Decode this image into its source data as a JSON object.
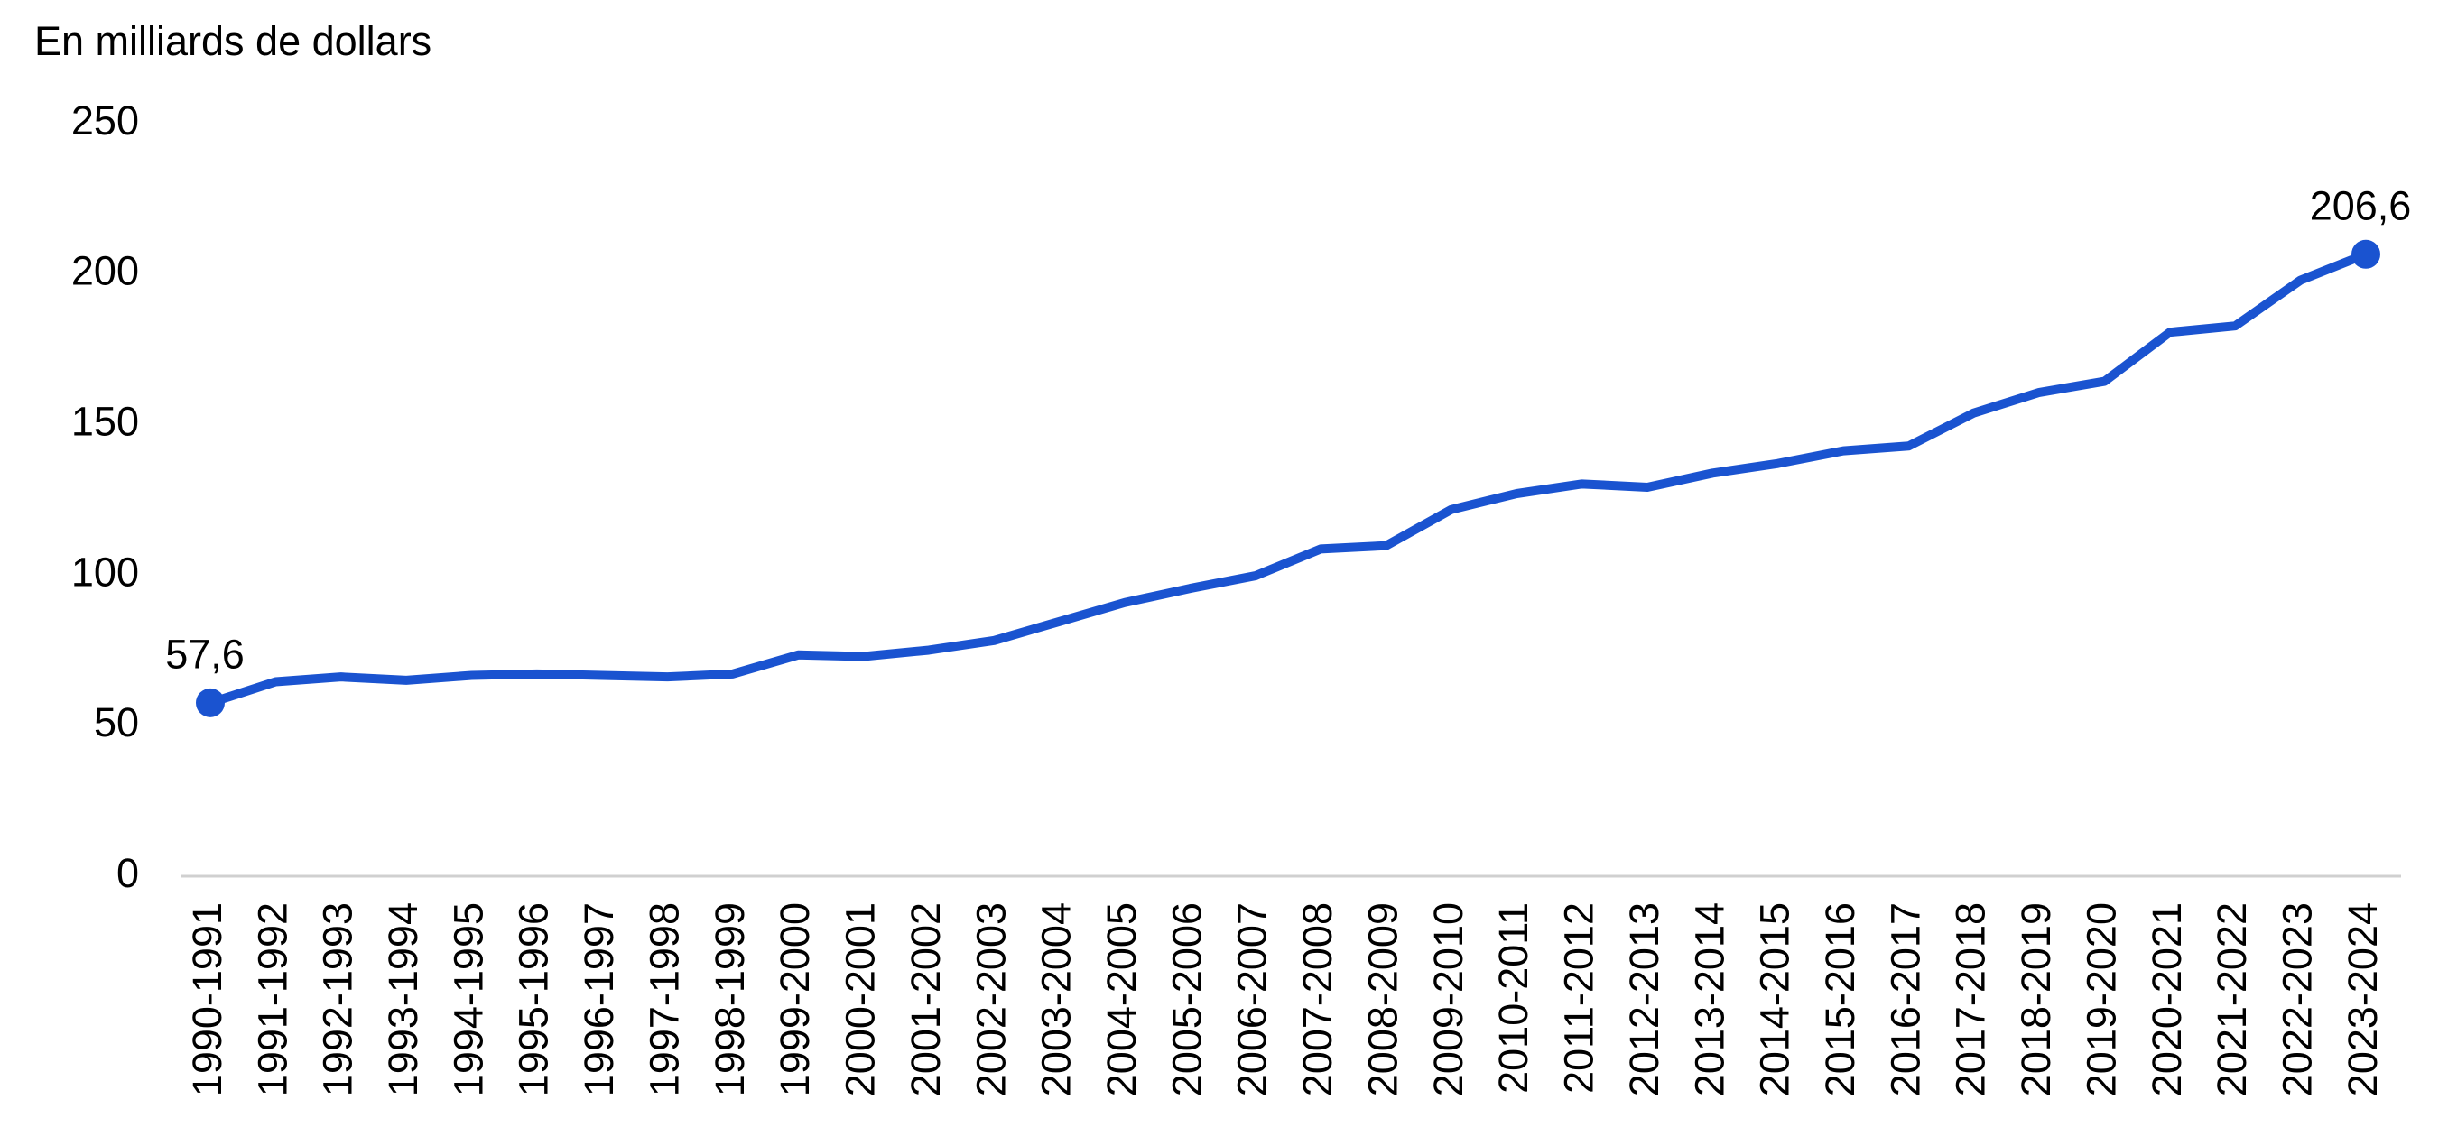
{
  "chart_data": {
    "type": "line",
    "y_axis_label": "En milliards de dollars",
    "categories": [
      "1990-1991",
      "1991-1992",
      "1992-1993",
      "1993-1994",
      "1994-1995",
      "1995-1996",
      "1996-1997",
      "1997-1998",
      "1998-1999",
      "1999-2000",
      "2000-2001",
      "2001-2002",
      "2002-2003",
      "2003-2004",
      "2004-2005",
      "2005-2006",
      "2006-2007",
      "2007-2008",
      "2008-2009",
      "2009-2010",
      "2010-2011",
      "2011-2012",
      "2012-2013",
      "2013-2014",
      "2014-2015",
      "2015-2016",
      "2016-2017",
      "2017-2018",
      "2018-2019",
      "2019-2020",
      "2020-2021",
      "2021-2022",
      "2022-2023",
      "2023-2024"
    ],
    "series": [
      {
        "color": "#1a53d0",
        "values": [
          57.6,
          64.6,
          66.2,
          65.1,
          66.7,
          67.2,
          66.7,
          66.2,
          67.2,
          73.5,
          73.0,
          75.1,
          78.3,
          84.6,
          90.9,
          95.6,
          99.8,
          108.7,
          109.8,
          121.8,
          127.1,
          130.3,
          129.2,
          133.9,
          137.1,
          141.3,
          142.9,
          153.9,
          160.7,
          164.4,
          180.7,
          182.8,
          198.0,
          206.6
        ],
        "value_labels": [
          "57,6",
          null,
          null,
          null,
          null,
          null,
          null,
          null,
          null,
          null,
          null,
          null,
          null,
          null,
          null,
          null,
          null,
          null,
          null,
          null,
          null,
          null,
          null,
          null,
          null,
          null,
          null,
          null,
          null,
          null,
          null,
          null,
          null,
          "206,6"
        ]
      }
    ],
    "ylim": [
      0,
      250
    ],
    "yticks": [
      0,
      50,
      100,
      150,
      200,
      250
    ],
    "grid": false
  }
}
